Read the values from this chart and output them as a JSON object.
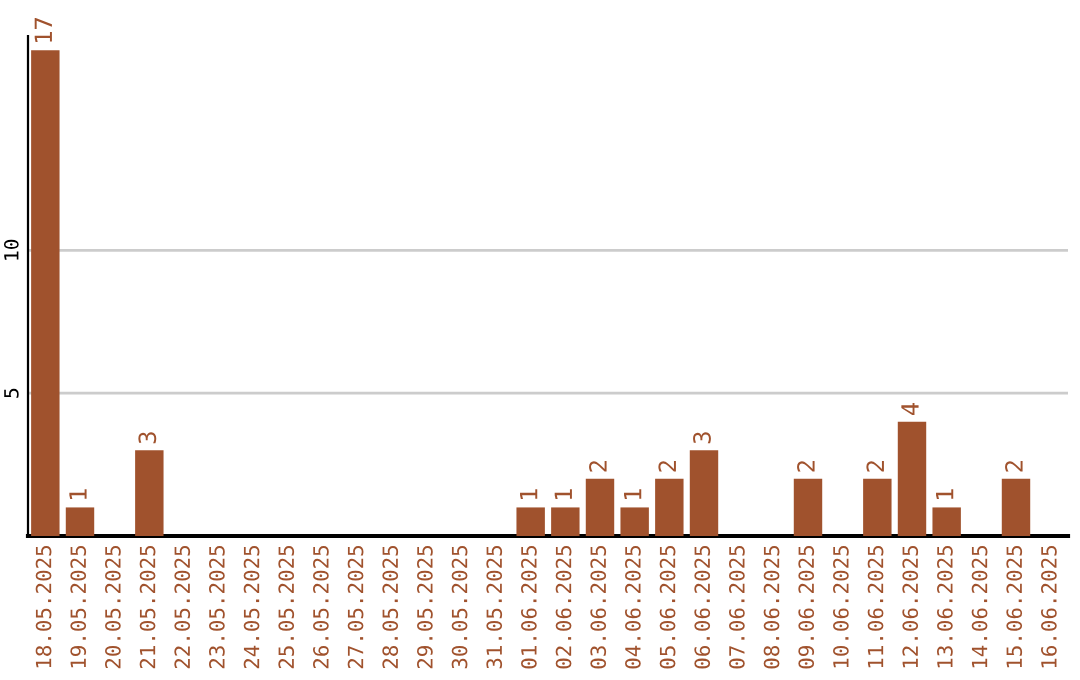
{
  "chart_data": {
    "type": "bar",
    "categories": [
      "18.05.2025",
      "19.05.2025",
      "20.05.2025",
      "21.05.2025",
      "22.05.2025",
      "23.05.2025",
      "24.05.2025",
      "25.05.2025",
      "26.05.2025",
      "27.05.2025",
      "28.05.2025",
      "29.05.2025",
      "30.05.2025",
      "31.05.2025",
      "01.06.2025",
      "02.06.2025",
      "03.06.2025",
      "04.06.2025",
      "05.06.2025",
      "06.06.2025",
      "07.06.2025",
      "08.06.2025",
      "09.06.2025",
      "10.06.2025",
      "11.06.2025",
      "12.06.2025",
      "13.06.2025",
      "14.06.2025",
      "15.06.2025",
      "16.06.2025"
    ],
    "values": [
      17,
      1,
      0,
      3,
      0,
      0,
      0,
      0,
      0,
      0,
      0,
      0,
      0,
      0,
      1,
      1,
      2,
      1,
      2,
      3,
      0,
      0,
      2,
      0,
      2,
      4,
      1,
      0,
      2,
      0
    ],
    "value_labels": [
      "17",
      "1",
      null,
      "3",
      null,
      null,
      null,
      null,
      null,
      null,
      null,
      null,
      null,
      null,
      "1",
      "1",
      "2",
      "1",
      "2",
      "3",
      null,
      null,
      "2",
      null,
      "2",
      "4",
      "1",
      null,
      "2",
      null
    ],
    "color": "#a0522d",
    "ylim": [
      0,
      17.5
    ],
    "yticks": [
      5,
      10
    ],
    "grid": "y",
    "legend": false
  }
}
